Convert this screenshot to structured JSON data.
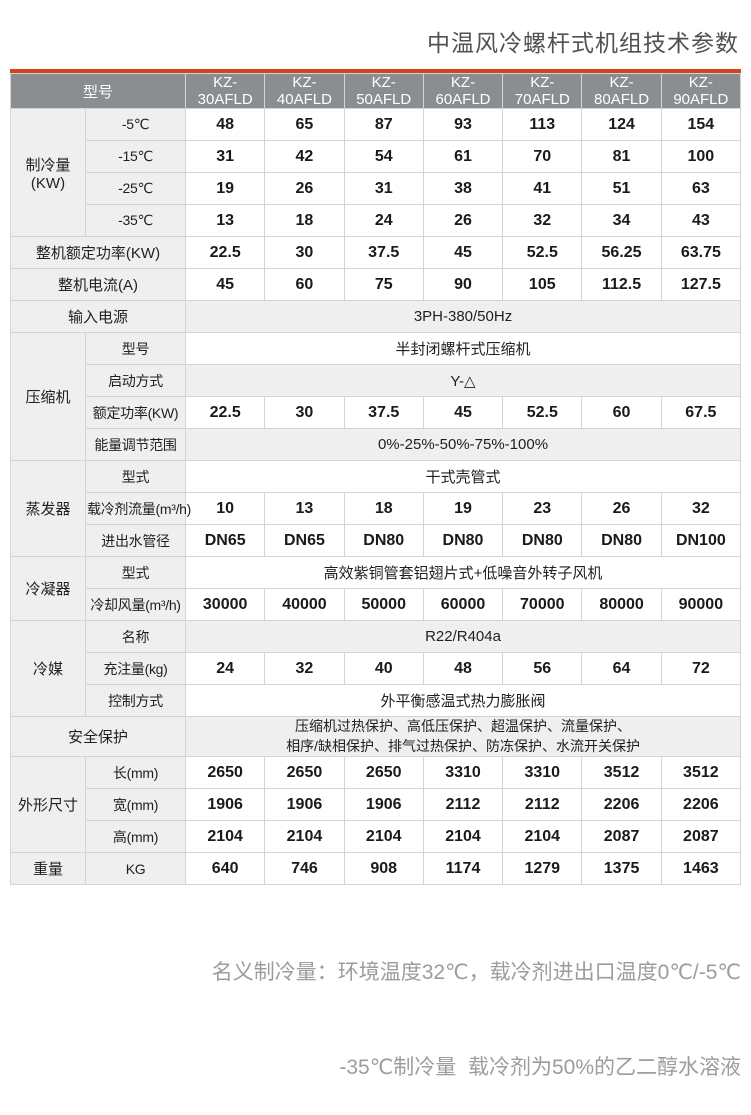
{
  "title": "中温风冷螺杆式机组技术参数",
  "footer": {
    "line1": "名义制冷量：环境温度32℃，载冷剂进出口温度0℃/-5℃",
    "line2": "-35℃制冷量  载冷剂为50%的乙二醇水溶液"
  },
  "colors": {
    "accent": "#d1441e",
    "header_bg": "#8a8e91",
    "header_text": "#ffffff",
    "label_bg": "#efefef",
    "border": "#d4d4d4",
    "footnote_text": "#9c9c9c"
  },
  "table": {
    "column_headers": [
      "型号",
      "KZ-30AFLD",
      "KZ-40AFLD",
      "KZ-50AFLD",
      "KZ-60AFLD",
      "KZ-70AFLD",
      "KZ-80AFLD",
      "KZ-90AFLD"
    ],
    "rows": [
      {
        "cells": [
          {
            "t": "型号",
            "k": "h",
            "cs": 2
          },
          {
            "t": "KZ-30AFLD",
            "k": "h"
          },
          {
            "t": "KZ-40AFLD",
            "k": "h"
          },
          {
            "t": "KZ-50AFLD",
            "k": "h"
          },
          {
            "t": "KZ-60AFLD",
            "k": "h"
          },
          {
            "t": "KZ-70AFLD",
            "k": "h"
          },
          {
            "t": "KZ-80AFLD",
            "k": "h"
          },
          {
            "t": "KZ-90AFLD",
            "k": "h"
          }
        ]
      },
      {
        "cells": [
          {
            "t": "制冷量(KW)",
            "k": "g",
            "rs": 4
          },
          {
            "t": "-5℃",
            "k": "l"
          },
          {
            "t": "48",
            "k": "d"
          },
          {
            "t": "65",
            "k": "d"
          },
          {
            "t": "87",
            "k": "d"
          },
          {
            "t": "93",
            "k": "d"
          },
          {
            "t": "113",
            "k": "d"
          },
          {
            "t": "124",
            "k": "d"
          },
          {
            "t": "154",
            "k": "d"
          }
        ]
      },
      {
        "cells": [
          {
            "t": "-15℃",
            "k": "l"
          },
          {
            "t": "31",
            "k": "d"
          },
          {
            "t": "42",
            "k": "d"
          },
          {
            "t": "54",
            "k": "d"
          },
          {
            "t": "61",
            "k": "d"
          },
          {
            "t": "70",
            "k": "d"
          },
          {
            "t": "81",
            "k": "d"
          },
          {
            "t": "100",
            "k": "d"
          }
        ]
      },
      {
        "cells": [
          {
            "t": "-25℃",
            "k": "l"
          },
          {
            "t": "19",
            "k": "d"
          },
          {
            "t": "26",
            "k": "d"
          },
          {
            "t": "31",
            "k": "d"
          },
          {
            "t": "38",
            "k": "d"
          },
          {
            "t": "41",
            "k": "d"
          },
          {
            "t": "51",
            "k": "d"
          },
          {
            "t": "63",
            "k": "d"
          }
        ]
      },
      {
        "cells": [
          {
            "t": "-35℃",
            "k": "l"
          },
          {
            "t": "13",
            "k": "d"
          },
          {
            "t": "18",
            "k": "d"
          },
          {
            "t": "24",
            "k": "d"
          },
          {
            "t": "26",
            "k": "d"
          },
          {
            "t": "32",
            "k": "d"
          },
          {
            "t": "34",
            "k": "d"
          },
          {
            "t": "43",
            "k": "d"
          }
        ]
      },
      {
        "cells": [
          {
            "t": "整机额定功率(KW)",
            "k": "g",
            "cs": 2
          },
          {
            "t": "22.5",
            "k": "d"
          },
          {
            "t": "30",
            "k": "d"
          },
          {
            "t": "37.5",
            "k": "d"
          },
          {
            "t": "45",
            "k": "d"
          },
          {
            "t": "52.5",
            "k": "d"
          },
          {
            "t": "56.25",
            "k": "d"
          },
          {
            "t": "63.75",
            "k": "d"
          }
        ]
      },
      {
        "cells": [
          {
            "t": "整机电流(A)",
            "k": "g",
            "cs": 2
          },
          {
            "t": "45",
            "k": "d"
          },
          {
            "t": "60",
            "k": "d"
          },
          {
            "t": "75",
            "k": "d"
          },
          {
            "t": "90",
            "k": "d"
          },
          {
            "t": "105",
            "k": "d"
          },
          {
            "t": "112.5",
            "k": "d"
          },
          {
            "t": "127.5",
            "k": "d"
          }
        ]
      },
      {
        "cells": [
          {
            "t": "输入电源",
            "k": "g",
            "cs": 2
          },
          {
            "t": "3PH-380/50Hz",
            "k": "sg",
            "cs": 7
          }
        ]
      },
      {
        "cells": [
          {
            "t": "压缩机",
            "k": "g",
            "rs": 4
          },
          {
            "t": "型号",
            "k": "l"
          },
          {
            "t": "半封闭螺杆式压缩机",
            "k": "sw",
            "cs": 7
          }
        ]
      },
      {
        "cells": [
          {
            "t": "启动方式",
            "k": "l"
          },
          {
            "t": "Y-△",
            "k": "sg",
            "cs": 7
          }
        ]
      },
      {
        "cells": [
          {
            "t": "额定功率(KW)",
            "k": "l"
          },
          {
            "t": "22.5",
            "k": "d"
          },
          {
            "t": "30",
            "k": "d"
          },
          {
            "t": "37.5",
            "k": "d"
          },
          {
            "t": "45",
            "k": "d"
          },
          {
            "t": "52.5",
            "k": "d"
          },
          {
            "t": "60",
            "k": "d"
          },
          {
            "t": "67.5",
            "k": "d"
          }
        ]
      },
      {
        "cells": [
          {
            "t": "能量调节范围",
            "k": "l"
          },
          {
            "t": "0%-25%-50%-75%-100%",
            "k": "sg",
            "cs": 7
          }
        ]
      },
      {
        "cells": [
          {
            "t": "蒸发器",
            "k": "g",
            "rs": 3
          },
          {
            "t": "型式",
            "k": "l"
          },
          {
            "t": "干式壳管式",
            "k": "sw",
            "cs": 7
          }
        ]
      },
      {
        "cells": [
          {
            "t": "载冷剂流量(m³/h)",
            "k": "l"
          },
          {
            "t": "10",
            "k": "d"
          },
          {
            "t": "13",
            "k": "d"
          },
          {
            "t": "18",
            "k": "d"
          },
          {
            "t": "19",
            "k": "d"
          },
          {
            "t": "23",
            "k": "d"
          },
          {
            "t": "26",
            "k": "d"
          },
          {
            "t": "32",
            "k": "d"
          }
        ]
      },
      {
        "cells": [
          {
            "t": "进出水管径",
            "k": "l"
          },
          {
            "t": "DN65",
            "k": "d"
          },
          {
            "t": "DN65",
            "k": "d"
          },
          {
            "t": "DN80",
            "k": "d"
          },
          {
            "t": "DN80",
            "k": "d"
          },
          {
            "t": "DN80",
            "k": "d"
          },
          {
            "t": "DN80",
            "k": "d"
          },
          {
            "t": "DN100",
            "k": "d"
          }
        ]
      },
      {
        "cells": [
          {
            "t": "冷凝器",
            "k": "g",
            "rs": 2
          },
          {
            "t": "型式",
            "k": "l"
          },
          {
            "t": "高效紫铜管套铝翅片式+低噪音外转子风机",
            "k": "sw",
            "cs": 7
          }
        ]
      },
      {
        "cells": [
          {
            "t": "冷却风量(m³/h)",
            "k": "l"
          },
          {
            "t": "30000",
            "k": "d"
          },
          {
            "t": "40000",
            "k": "d"
          },
          {
            "t": "50000",
            "k": "d"
          },
          {
            "t": "60000",
            "k": "d"
          },
          {
            "t": "70000",
            "k": "d"
          },
          {
            "t": "80000",
            "k": "d"
          },
          {
            "t": "90000",
            "k": "d"
          }
        ]
      },
      {
        "cells": [
          {
            "t": "冷媒",
            "k": "g",
            "rs": 3
          },
          {
            "t": "名称",
            "k": "l"
          },
          {
            "t": "R22/R404a",
            "k": "sg",
            "cs": 7
          }
        ]
      },
      {
        "cells": [
          {
            "t": "充注量(kg)",
            "k": "l"
          },
          {
            "t": "24",
            "k": "d"
          },
          {
            "t": "32",
            "k": "d"
          },
          {
            "t": "40",
            "k": "d"
          },
          {
            "t": "48",
            "k": "d"
          },
          {
            "t": "56",
            "k": "d"
          },
          {
            "t": "64",
            "k": "d"
          },
          {
            "t": "72",
            "k": "d"
          }
        ]
      },
      {
        "cells": [
          {
            "t": "控制方式",
            "k": "l"
          },
          {
            "t": "外平衡感温式热力膨胀阀",
            "k": "sw",
            "cs": 7
          }
        ]
      },
      {
        "tall": true,
        "cells": [
          {
            "t": "安全保护",
            "k": "g",
            "cs": 2
          },
          {
            "t": "压缩机过热保护、高低压保护、超温保护、流量保护、\n相序/缺相保护、排气过热保护、防冻保护、水流开关保护",
            "k": "sg",
            "cs": 7,
            "ml": true
          }
        ]
      },
      {
        "cells": [
          {
            "t": "外形尺寸",
            "k": "g",
            "rs": 3
          },
          {
            "t": "长(mm)",
            "k": "l"
          },
          {
            "t": "2650",
            "k": "d"
          },
          {
            "t": "2650",
            "k": "d"
          },
          {
            "t": "2650",
            "k": "d"
          },
          {
            "t": "3310",
            "k": "d"
          },
          {
            "t": "3310",
            "k": "d"
          },
          {
            "t": "3512",
            "k": "d"
          },
          {
            "t": "3512",
            "k": "d"
          }
        ]
      },
      {
        "cells": [
          {
            "t": "宽(mm)",
            "k": "l"
          },
          {
            "t": "1906",
            "k": "d"
          },
          {
            "t": "1906",
            "k": "d"
          },
          {
            "t": "1906",
            "k": "d"
          },
          {
            "t": "2112",
            "k": "d"
          },
          {
            "t": "2112",
            "k": "d"
          },
          {
            "t": "2206",
            "k": "d"
          },
          {
            "t": "2206",
            "k": "d"
          }
        ]
      },
      {
        "cells": [
          {
            "t": "高(mm)",
            "k": "l"
          },
          {
            "t": "2104",
            "k": "d"
          },
          {
            "t": "2104",
            "k": "d"
          },
          {
            "t": "2104",
            "k": "d"
          },
          {
            "t": "2104",
            "k": "d"
          },
          {
            "t": "2104",
            "k": "d"
          },
          {
            "t": "2087",
            "k": "d"
          },
          {
            "t": "2087",
            "k": "d"
          }
        ]
      },
      {
        "cells": [
          {
            "t": "重量",
            "k": "g"
          },
          {
            "t": "KG",
            "k": "l"
          },
          {
            "t": "640",
            "k": "d"
          },
          {
            "t": "746",
            "k": "d"
          },
          {
            "t": "908",
            "k": "d"
          },
          {
            "t": "1174",
            "k": "d"
          },
          {
            "t": "1279",
            "k": "d"
          },
          {
            "t": "1375",
            "k": "d"
          },
          {
            "t": "1463",
            "k": "d"
          }
        ]
      }
    ]
  }
}
